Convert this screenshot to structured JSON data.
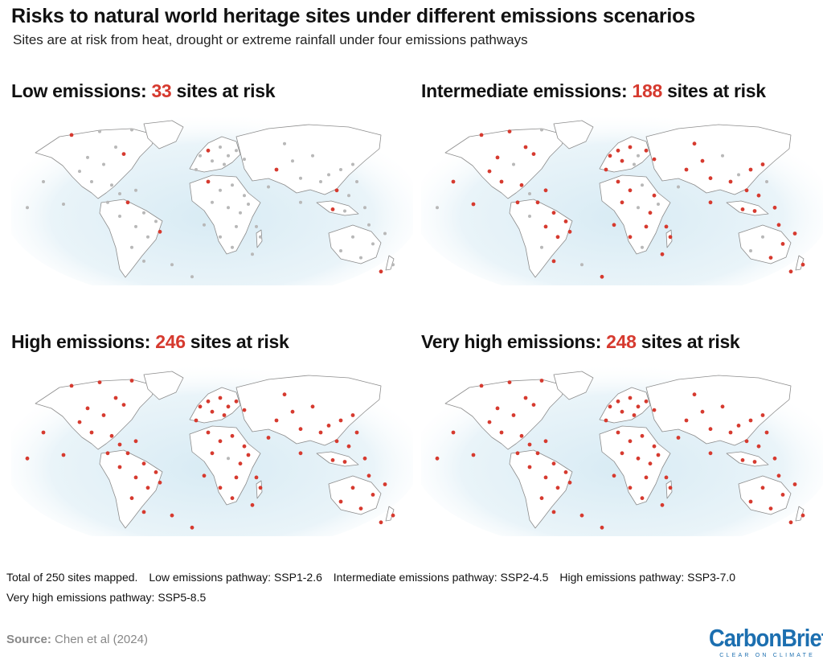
{
  "header": {
    "title": "Risks to natural world heritage sites under different emissions scenarios",
    "subtitle": "Sites are at risk from heat, drought or extreme rainfall under four emissions pathways"
  },
  "panels": [
    {
      "prefix": "Low emissions: ",
      "count": "33",
      "suffix": " sites at risk",
      "sites_at_risk": 33
    },
    {
      "prefix": "Intermediate emissions: ",
      "count": "188",
      "suffix": " sites at risk",
      "sites_at_risk": 188
    },
    {
      "prefix": "High emissions: ",
      "count": "246",
      "suffix": " sites at risk",
      "sites_at_risk": 246
    },
    {
      "prefix": "Very high emissions: ",
      "count": "248",
      "suffix": " sites at risk",
      "sites_at_risk": 248
    }
  ],
  "notes": {
    "total": "Total of 250 sites mapped.",
    "low": "Low emissions pathway: SSP1-2.6",
    "intermediate": "Intermediate emissions pathway: SSP2-4.5",
    "high": "High emissions pathway: SSP3-7.0",
    "very_high": "Very high emissions pathway: SSP5-8.5"
  },
  "source": {
    "label": "Source:",
    "text": "Chen et al (2024)"
  },
  "logo": {
    "word": "CarbonBrief",
    "tagline": "CLEAR ON CLIMATE"
  },
  "colors": {
    "at_risk": "#d63a2f",
    "not_at_risk": "#b8b8b8",
    "land": "#ffffff",
    "coast": "#8c8c8c",
    "ocean_glow": "#d8ebf4",
    "accent": "#1c6fb0"
  }
}
